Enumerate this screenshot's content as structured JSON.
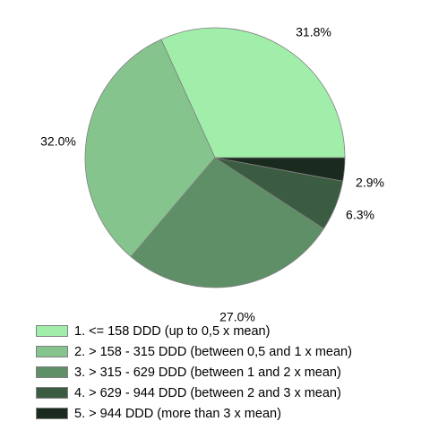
{
  "chart_data": {
    "type": "pie",
    "categories": [
      "1. <= 158 DDD (up to 0,5 x mean)",
      "2. > 158 - 315 DDD (between 0,5 and 1 x mean)",
      "3. > 315 - 629 DDD (between 1 and 2 x mean)",
      "4. > 629 - 944 DDD (between 2 and 3 x mean)",
      "5. > 944 DDD (more than 3 x mean)"
    ],
    "values": [
      31.8,
      32.0,
      27.0,
      6.3,
      2.9
    ],
    "labels": [
      "31.8%",
      "32.0%",
      "27.0%",
      "6.3%",
      "2.9%"
    ],
    "colors": [
      "#a0eeaa",
      "#86c48d",
      "#5e8f66",
      "#3b5c40",
      "#1a2a1e"
    ],
    "start_angle_deg": 0,
    "direction": "counterclockwise",
    "legend_position": "bottom",
    "title": ""
  }
}
